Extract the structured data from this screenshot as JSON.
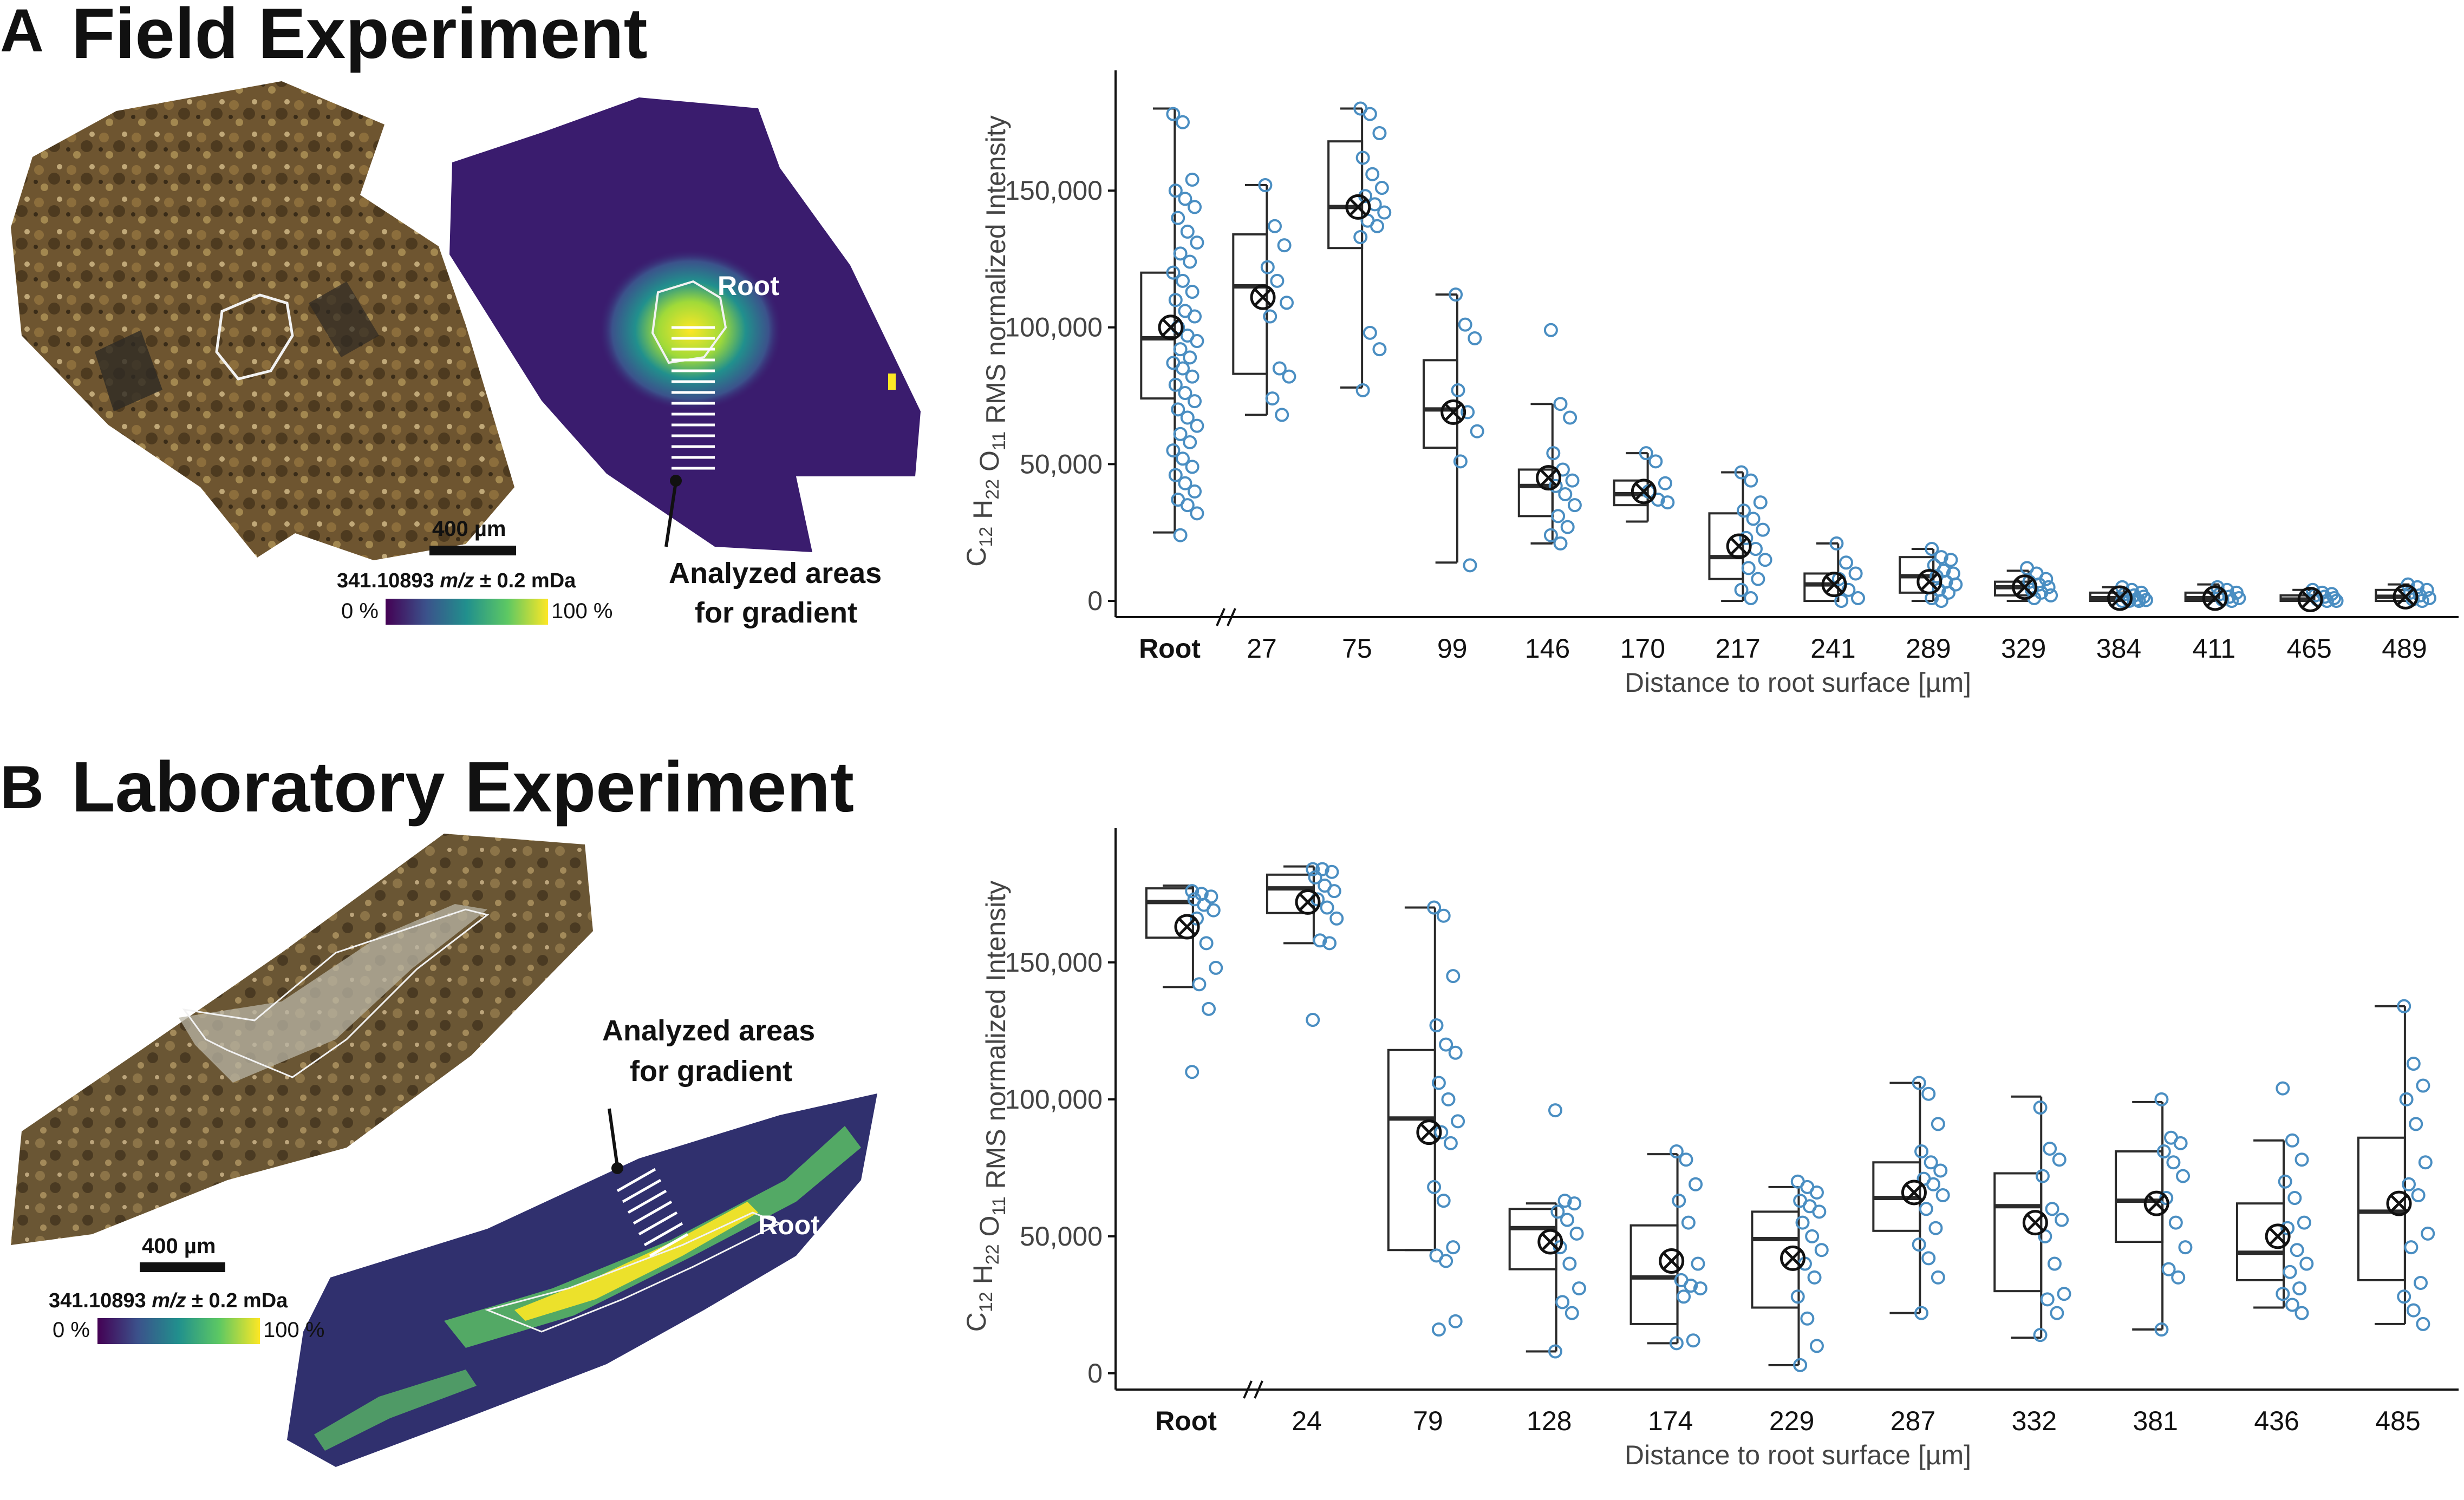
{
  "figure": {
    "panels": [
      {
        "letter": "A",
        "title": "Field Experiment",
        "root_label": "Root",
        "analyzed_label_line1": "Analyzed areas",
        "analyzed_label_line2": "for gradient",
        "scale_bar": "400 µm",
        "colorbar_mz": "341.10893",
        "colorbar_mz_unit": "m/z",
        "colorbar_tol": "± 0.2 mDa",
        "colorbar_min": "0 %",
        "colorbar_max": "100 %"
      },
      {
        "letter": "B",
        "title": "Laboratory Experiment",
        "root_label": "Root",
        "analyzed_label_line1": "Analyzed areas",
        "analyzed_label_line2": "for gradient",
        "scale_bar": "400 µm",
        "colorbar_mz": "341.10893",
        "colorbar_mz_unit": "m/z",
        "colorbar_tol": "± 0.2 mDa",
        "colorbar_min": "0 %",
        "colorbar_max": "100 %"
      }
    ]
  },
  "chart_data": [
    {
      "type": "box",
      "title": "",
      "ylabel_formula": {
        "C": "C",
        "c_sub": "12",
        "H": "H",
        "h_sub": "22",
        "O": "O",
        "o_sub": "11"
      },
      "ylabel": "RMS normalized Intensity",
      "xlabel": "Distance to root surface [µm]",
      "ylim": [
        0,
        190000
      ],
      "yticks": [
        0,
        50000,
        100000,
        150000
      ],
      "ytick_labels": [
        "0",
        "50,000",
        "100,000",
        "150,000"
      ],
      "marker_color": "#4a8ec2",
      "categories": [
        "Root",
        "27",
        "75",
        "99",
        "146",
        "170",
        "217",
        "241",
        "289",
        "329",
        "384",
        "411",
        "465",
        "489"
      ],
      "boxes": [
        {
          "min": 25000,
          "q1": 74000,
          "median": 96000,
          "q3": 120000,
          "max": 180000,
          "mean": 100000
        },
        {
          "min": 68000,
          "q1": 83000,
          "median": 115000,
          "q3": 134000,
          "max": 152000,
          "mean": 111000
        },
        {
          "min": 78000,
          "q1": 129000,
          "median": 144000,
          "q3": 168000,
          "max": 180000,
          "mean": 144000
        },
        {
          "min": 14000,
          "q1": 56000,
          "median": 70000,
          "q3": 88000,
          "max": 112000,
          "mean": 69000
        },
        {
          "min": 21000,
          "q1": 31000,
          "median": 42000,
          "q3": 48000,
          "max": 72000,
          "mean": 45000
        },
        {
          "min": 29000,
          "q1": 35000,
          "median": 39000,
          "q3": 44000,
          "max": 54000,
          "mean": 40000
        },
        {
          "min": 0,
          "q1": 8000,
          "median": 16000,
          "q3": 32000,
          "max": 47000,
          "mean": 20000
        },
        {
          "min": 0,
          "q1": 0,
          "median": 6000,
          "q3": 10000,
          "max": 21000,
          "mean": 6000
        },
        {
          "min": 0,
          "q1": 3000,
          "median": 9000,
          "q3": 16000,
          "max": 19000,
          "mean": 7000
        },
        {
          "min": 0,
          "q1": 2000,
          "median": 5000,
          "q3": 7000,
          "max": 11000,
          "mean": 5000
        },
        {
          "min": 0,
          "q1": 0,
          "median": 1000,
          "q3": 3000,
          "max": 5000,
          "mean": 1000
        },
        {
          "min": 0,
          "q1": 0,
          "median": 1000,
          "q3": 3000,
          "max": 6000,
          "mean": 1000
        },
        {
          "min": 0,
          "q1": 0,
          "median": 500,
          "q3": 2000,
          "max": 4000,
          "mean": 500
        },
        {
          "min": 0,
          "q1": 0,
          "median": 1500,
          "q3": 4000,
          "max": 6000,
          "mean": 1500
        }
      ],
      "points": [
        [
          178000,
          175000,
          154000,
          150000,
          147000,
          144000,
          140000,
          135000,
          131000,
          127000,
          124000,
          120000,
          117000,
          113000,
          110000,
          106000,
          104000,
          100000,
          97000,
          95000,
          92000,
          89000,
          87000,
          85000,
          82000,
          79000,
          76000,
          73000,
          70000,
          67000,
          64000,
          61000,
          58000,
          55000,
          52000,
          49000,
          46000,
          43000,
          40000,
          37000,
          35000,
          32000,
          24000
        ],
        [
          152000,
          137000,
          130000,
          122000,
          117000,
          109000,
          104000,
          85000,
          82000,
          74000,
          68000
        ],
        [
          180000,
          178000,
          171000,
          162000,
          156000,
          151000,
          148000,
          145000,
          142000,
          139000,
          137000,
          133000,
          98000,
          92000,
          77000
        ],
        [
          112000,
          101000,
          96000,
          77000,
          69000,
          62000,
          51000,
          13000
        ],
        [
          99000,
          72000,
          67000,
          54000,
          48000,
          44000,
          42000,
          39000,
          35000,
          31000,
          27000,
          24000,
          21000
        ],
        [
          54000,
          51000,
          43000,
          40000,
          37000,
          36000
        ],
        [
          47000,
          44000,
          36000,
          33000,
          30000,
          26000,
          23000,
          19000,
          15000,
          12000,
          8000,
          4000,
          1000
        ],
        [
          21000,
          14000,
          10000,
          8000,
          4000,
          1000,
          0
        ],
        [
          19000,
          16000,
          15000,
          13000,
          11000,
          10000,
          9000,
          7000,
          6000,
          4000,
          3000,
          1000,
          0
        ],
        [
          12000,
          10000,
          8000,
          7000,
          6000,
          5000,
          4000,
          3000,
          2000,
          1000
        ],
        [
          5000,
          4000,
          3000,
          2500,
          2000,
          1500,
          1000,
          500,
          300,
          0,
          0,
          0
        ],
        [
          5000,
          4000,
          3000,
          2500,
          1500,
          1000,
          500,
          0
        ],
        [
          4000,
          3000,
          2500,
          2000,
          1500,
          1000,
          500,
          0,
          0
        ],
        [
          6000,
          5000,
          4000,
          3000,
          2000,
          1000,
          500,
          0
        ]
      ]
    },
    {
      "type": "box",
      "title": "",
      "ylabel_formula": {
        "C": "C",
        "c_sub": "12",
        "H": "H",
        "h_sub": "22",
        "O": "O",
        "o_sub": "11"
      },
      "ylabel": "RMS normalized Intensity",
      "xlabel": "Distance to root surface [µm]",
      "ylim": [
        0,
        195000
      ],
      "yticks": [
        0,
        50000,
        100000,
        150000
      ],
      "ytick_labels": [
        "0",
        "50,000",
        "100,000",
        "150,000"
      ],
      "marker_color": "#4a8ec2",
      "categories": [
        "Root",
        "24",
        "79",
        "128",
        "174",
        "229",
        "287",
        "332",
        "381",
        "436",
        "485"
      ],
      "boxes": [
        {
          "min": 141000,
          "q1": 159000,
          "median": 172000,
          "q3": 177000,
          "max": 178000,
          "mean": 163000
        },
        {
          "min": 157000,
          "q1": 168000,
          "median": 177000,
          "q3": 182000,
          "max": 185000,
          "mean": 172000
        },
        {
          "min": 45000,
          "q1": 45000,
          "median": 93000,
          "q3": 118000,
          "max": 170000,
          "mean": 88000
        },
        {
          "min": 8000,
          "q1": 38000,
          "median": 53000,
          "q3": 60000,
          "max": 62000,
          "mean": 48000
        },
        {
          "min": 11000,
          "q1": 18000,
          "median": 35000,
          "q3": 54000,
          "max": 80000,
          "mean": 41000
        },
        {
          "min": 3000,
          "q1": 24000,
          "median": 49000,
          "q3": 59000,
          "max": 68000,
          "mean": 42000
        },
        {
          "min": 22000,
          "q1": 52000,
          "median": 64000,
          "q3": 77000,
          "max": 106000,
          "mean": 66000
        },
        {
          "min": 13000,
          "q1": 30000,
          "median": 61000,
          "q3": 73000,
          "max": 101000,
          "mean": 55000
        },
        {
          "min": 16000,
          "q1": 48000,
          "median": 63000,
          "q3": 81000,
          "max": 99000,
          "mean": 62000
        },
        {
          "min": 24000,
          "q1": 34000,
          "median": 44000,
          "q3": 62000,
          "max": 85000,
          "mean": 50000
        },
        {
          "min": 18000,
          "q1": 34000,
          "median": 59000,
          "q3": 86000,
          "max": 134000,
          "mean": 62000
        }
      ],
      "points": [
        [
          176000,
          175000,
          174000,
          173000,
          171000,
          169000,
          166000,
          157000,
          148000,
          142000,
          133000,
          110000
        ],
        [
          184000,
          184000,
          183000,
          181000,
          178000,
          176000,
          173000,
          170000,
          166000,
          158000,
          157000,
          129000
        ],
        [
          170000,
          167000,
          145000,
          127000,
          120000,
          117000,
          106000,
          100000,
          92000,
          88000,
          84000,
          68000,
          63000,
          46000,
          43000,
          41000,
          19000,
          16000
        ],
        [
          96000,
          63000,
          62000,
          59000,
          56000,
          51000,
          46000,
          40000,
          31000,
          26000,
          22000,
          8000
        ],
        [
          81000,
          78000,
          69000,
          63000,
          55000,
          40000,
          34000,
          32000,
          31000,
          28000,
          12000,
          11000
        ],
        [
          70000,
          68000,
          66000,
          63000,
          61000,
          59000,
          55000,
          50000,
          45000,
          40000,
          35000,
          28000,
          20000,
          10000,
          3000
        ],
        [
          106000,
          102000,
          91000,
          81000,
          77000,
          74000,
          71000,
          69000,
          65000,
          60000,
          53000,
          47000,
          42000,
          35000,
          22000
        ],
        [
          97000,
          82000,
          78000,
          72000,
          60000,
          56000,
          50000,
          40000,
          29000,
          27000,
          22000,
          14000
        ],
        [
          100000,
          86000,
          84000,
          81000,
          77000,
          72000,
          64000,
          55000,
          46000,
          38000,
          35000,
          16000
        ],
        [
          104000,
          85000,
          78000,
          70000,
          64000,
          55000,
          53000,
          45000,
          40000,
          37000,
          31000,
          29000,
          25000,
          22000
        ],
        [
          134000,
          113000,
          105000,
          100000,
          91000,
          77000,
          69000,
          65000,
          51000,
          46000,
          33000,
          28000,
          23000,
          18000
        ]
      ]
    }
  ]
}
